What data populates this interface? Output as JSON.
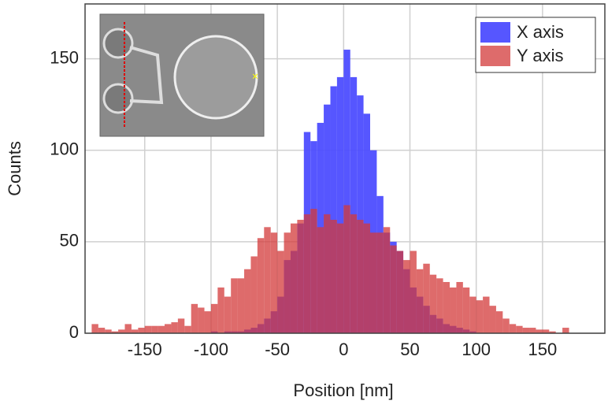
{
  "chart_data": {
    "type": "histogram",
    "xlabel": "Position [nm]",
    "ylabel": "Counts",
    "bins": [
      -190,
      -185,
      -180,
      -175,
      -170,
      -165,
      -160,
      -155,
      -150,
      -145,
      -140,
      -135,
      -130,
      -125,
      -120,
      -115,
      -110,
      -105,
      -100,
      -95,
      -90,
      -85,
      -80,
      -75,
      -70,
      -65,
      -60,
      -55,
      -50,
      -45,
      -40,
      -35,
      -30,
      -25,
      -20,
      -15,
      -10,
      -5,
      0,
      5,
      10,
      15,
      20,
      25,
      30,
      35,
      40,
      45,
      50,
      55,
      60,
      65,
      70,
      75,
      80,
      85,
      90,
      95,
      100,
      105,
      110,
      115,
      120,
      125,
      130,
      135,
      140,
      145,
      150,
      155,
      160,
      165,
      170,
      175,
      180
    ],
    "series": [
      {
        "name": "X axis",
        "color": "#4d4dff",
        "values": [
          0,
          0,
          0,
          0,
          0,
          0,
          0,
          0,
          0,
          0,
          0,
          0,
          0,
          0,
          0,
          0,
          0,
          0,
          1,
          0,
          1,
          1,
          1,
          2,
          3,
          5,
          8,
          12,
          20,
          40,
          45,
          60,
          110,
          105,
          115,
          125,
          135,
          140,
          155,
          140,
          130,
          120,
          100,
          75,
          55,
          50,
          45,
          35,
          25,
          20,
          15,
          10,
          8,
          5,
          4,
          3,
          2,
          1,
          0,
          0,
          0,
          0,
          0,
          0,
          0,
          0,
          0,
          0,
          0,
          0,
          0,
          0,
          0,
          0
        ]
      },
      {
        "name": "Y axis",
        "color": "#d33a3a",
        "values": [
          5,
          3,
          2,
          1,
          2,
          5,
          2,
          3,
          4,
          4,
          4,
          5,
          6,
          8,
          4,
          16,
          14,
          12,
          16,
          25,
          20,
          30,
          30,
          35,
          42,
          52,
          58,
          55,
          45,
          55,
          60,
          62,
          65,
          68,
          58,
          65,
          62,
          60,
          70,
          65,
          62,
          60,
          55,
          55,
          58,
          48,
          45,
          40,
          45,
          35,
          38,
          32,
          30,
          28,
          25,
          28,
          25,
          20,
          18,
          20,
          15,
          12,
          8,
          5,
          4,
          3,
          3,
          2,
          2,
          1,
          0,
          3,
          0,
          0
        ]
      }
    ],
    "xlim": [
      -195,
      197
    ],
    "ylim": [
      0,
      180
    ],
    "xticks": [
      -150,
      -100,
      -50,
      0,
      50,
      100,
      150
    ],
    "yticks": [
      0,
      50,
      100,
      150
    ],
    "grid": true,
    "legend": "upper right"
  }
}
